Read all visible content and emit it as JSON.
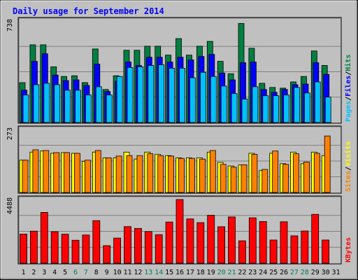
{
  "chart_data": {
    "type": "bar",
    "title": "Daily usage for September 2014",
    "days": [
      "1",
      "2",
      "3",
      "4",
      "5",
      "6",
      "7",
      "8",
      "9",
      "10",
      "11",
      "12",
      "13",
      "14",
      "15",
      "16",
      "17",
      "18",
      "19",
      "20",
      "21",
      "22",
      "23",
      "24",
      "25",
      "26",
      "27",
      "28",
      "29",
      "30",
      "31"
    ],
    "weekend_days": [
      "6",
      "7",
      "13",
      "14",
      "20",
      "21",
      "27",
      "28"
    ],
    "panels": [
      {
        "id": "hits-files-pages",
        "ymax_label": "738",
        "ymax": 738,
        "right_labels": [
          "Pages",
          "Files",
          "Hits"
        ],
        "series": [
          {
            "name": "Hits",
            "color": "#008040",
            "values": [
              290,
              565,
              565,
              405,
              335,
              340,
              290,
              535,
              240,
              340,
              525,
              525,
              555,
              555,
              490,
              610,
              490,
              555,
              590,
              445,
              355,
              720,
              540,
              285,
              255,
              250,
              295,
              335,
              520,
              415,
              0
            ]
          },
          {
            "name": "Files",
            "color": "#0000ff",
            "values": [
              235,
              445,
              500,
              345,
              305,
              310,
              270,
              425,
              225,
              300,
              440,
              415,
              475,
              475,
              440,
              475,
              455,
              480,
              495,
              360,
              310,
              435,
              440,
              240,
              220,
              240,
              275,
              280,
              435,
              350,
              0
            ]
          },
          {
            "name": "Pages",
            "color": "#00c0ff",
            "values": [
              200,
              275,
              285,
              275,
              235,
              235,
              200,
              260,
              200,
              335,
              400,
              405,
              415,
              420,
              395,
              395,
              325,
              365,
              335,
              265,
              210,
              170,
              260,
              195,
              195,
              200,
              255,
              215,
              295,
              185,
              0
            ]
          }
        ]
      },
      {
        "id": "visits-sites",
        "ymax_label": "273",
        "ymax": 273,
        "right_labels": [
          "Sites",
          "Visits"
        ],
        "series": [
          {
            "name": "Visits",
            "color": "#ffff00",
            "values": [
              140,
              175,
              180,
              170,
              173,
              170,
              135,
              175,
              150,
              150,
              175,
              145,
              175,
              165,
              160,
              150,
              150,
              150,
              175,
              130,
              115,
              120,
              170,
              95,
              170,
              125,
              175,
              125,
              175,
              160,
              0
            ]
          },
          {
            "name": "Sites",
            "color": "#ff8000",
            "values": [
              140,
              185,
              182,
              173,
              173,
              170,
              140,
              182,
              150,
              158,
              160,
              160,
              168,
              160,
              158,
              148,
              148,
              145,
              182,
              122,
              110,
              120,
              165,
              100,
              180,
              122,
              168,
              132,
              170,
              245,
              0
            ]
          }
        ]
      },
      {
        "id": "kbytes",
        "ymax_label": "4488",
        "ymax": 4488,
        "right_labels": [
          "KBytes"
        ],
        "series": [
          {
            "name": "KBytes",
            "color": "#ff0000",
            "values": [
              2050,
              2260,
              3580,
              2220,
              2040,
              1620,
              1990,
              3000,
              1240,
              1770,
              2580,
              2450,
              2230,
              2010,
              2900,
              4490,
              3120,
              2860,
              3380,
              2570,
              3260,
              1580,
              3200,
              2940,
              1630,
              2920,
              1930,
              2270,
              3440,
              1630,
              0
            ]
          }
        ]
      }
    ]
  }
}
